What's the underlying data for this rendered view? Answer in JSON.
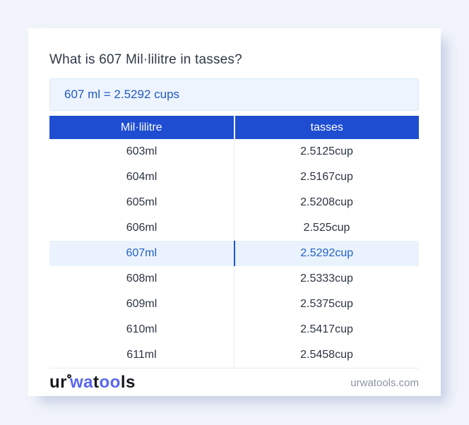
{
  "title": "What is 607 Mil·lilitre in tasses?",
  "result": "607 ml = 2.5292 cups",
  "table": {
    "headers": [
      "Mil·lilitre",
      "tasses"
    ],
    "rows": [
      {
        "ml": "603ml",
        "tasses": "2.5125cup",
        "highlighted": false
      },
      {
        "ml": "604ml",
        "tasses": "2.5167cup",
        "highlighted": false
      },
      {
        "ml": "605ml",
        "tasses": "2.5208cup",
        "highlighted": false
      },
      {
        "ml": "606ml",
        "tasses": "2.525cup",
        "highlighted": false
      },
      {
        "ml": "607ml",
        "tasses": "2.5292cup",
        "highlighted": true
      },
      {
        "ml": "608ml",
        "tasses": "2.5333cup",
        "highlighted": false
      },
      {
        "ml": "609ml",
        "tasses": "2.5375cup",
        "highlighted": false
      },
      {
        "ml": "610ml",
        "tasses": "2.5417cup",
        "highlighted": false
      },
      {
        "ml": "611ml",
        "tasses": "2.5458cup",
        "highlighted": false
      }
    ]
  },
  "footer": {
    "logo_parts": {
      "p1": "ur",
      "p2": "wa",
      "p3": "t",
      "p4": "oo",
      "p5": "ls"
    },
    "site": "urwatools.com"
  },
  "colors": {
    "page_bg": "#f1f4fa",
    "header_bg": "#1e4dd2",
    "accent_text": "#2158c5",
    "highlight_row_bg": "#eaf2fd",
    "result_box_bg": "#edf4fd",
    "logo_blue": "#5866f2",
    "muted_text": "#8b93a3"
  }
}
